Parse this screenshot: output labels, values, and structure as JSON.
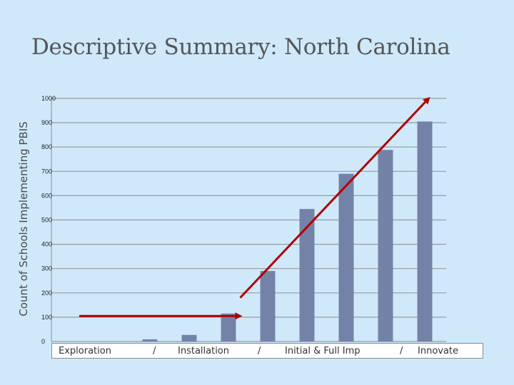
{
  "title": "Descriptive Summary: North Carolina",
  "chart_data": {
    "type": "bar",
    "title": "",
    "xlabel": "",
    "ylabel": "Count of Schools Implementing PBIS",
    "ylim": [
      0,
      1000
    ],
    "yticks": [
      0,
      100,
      200,
      300,
      400,
      500,
      600,
      700,
      800,
      900,
      1000
    ],
    "grid": true,
    "legend": "none",
    "series": [
      {
        "values": [
          0,
          0,
          9,
          27,
          115,
          290,
          545,
          690,
          788,
          905
        ]
      }
    ],
    "bar_color": "#7582a8",
    "phase_labels": [
      "Exploration",
      "/",
      "Installation",
      "/",
      "Initial & Full Imp",
      "/",
      "Innovate"
    ],
    "annotations": [
      {
        "type": "arrow",
        "color": "#b00000",
        "from": [
          0.2,
          105
        ],
        "to": [
          4.3,
          105
        ]
      },
      {
        "type": "arrow",
        "color": "#b00000",
        "from": [
          4.3,
          180
        ],
        "to": [
          9.1,
          1000
        ]
      }
    ]
  }
}
